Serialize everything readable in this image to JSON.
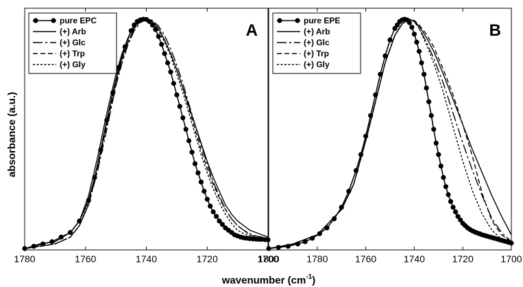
{
  "figure": {
    "ylabel": "absorbance (a.u.)",
    "xlabel_main": "wavenumber (cm",
    "xlabel_sup": "-1",
    "xlabel_close": ")"
  },
  "chart_data": [
    {
      "type": "line",
      "panel_label": "A",
      "x_axis": {
        "min": 1780,
        "max": 1700,
        "reversed": true,
        "ticks": [
          1780,
          1760,
          1740,
          1720,
          1700
        ]
      },
      "y_axis": {
        "min": 0,
        "max": 1,
        "ticks": []
      },
      "grid": false,
      "legend_position": "top-left",
      "series": [
        {
          "name": "pure EPC",
          "style": "solid-marker",
          "x": [
            1780,
            1777,
            1774,
            1771,
            1768,
            1765,
            1762,
            1759,
            1757,
            1755,
            1753,
            1751,
            1749,
            1747,
            1745,
            1744,
            1743,
            1742,
            1741,
            1740,
            1739,
            1738,
            1737,
            1736,
            1735,
            1734,
            1733,
            1732,
            1731,
            1730,
            1729,
            1728,
            1727,
            1726,
            1725,
            1724,
            1723,
            1722,
            1721,
            1720,
            1719,
            1718,
            1717,
            1716,
            1715,
            1714,
            1713,
            1712,
            1711,
            1710,
            1709,
            1708,
            1707,
            1706,
            1705,
            1704,
            1703,
            1702,
            1701,
            1700
          ],
          "y": [
            0.0,
            0.01,
            0.02,
            0.03,
            0.05,
            0.07,
            0.12,
            0.21,
            0.31,
            0.43,
            0.56,
            0.68,
            0.79,
            0.88,
            0.95,
            0.975,
            0.99,
            0.997,
            1.0,
            0.999,
            0.99,
            0.975,
            0.955,
            0.925,
            0.89,
            0.85,
            0.81,
            0.77,
            0.72,
            0.67,
            0.62,
            0.57,
            0.52,
            0.47,
            0.42,
            0.37,
            0.33,
            0.29,
            0.25,
            0.215,
            0.185,
            0.16,
            0.14,
            0.12,
            0.105,
            0.09,
            0.08,
            0.07,
            0.06,
            0.055,
            0.05,
            0.047,
            0.045,
            0.043,
            0.042,
            0.041,
            0.04,
            0.04,
            0.039,
            0.038
          ]
        },
        {
          "name": "(+) Arb",
          "style": "solid",
          "x": [
            1780,
            1775,
            1770,
            1765,
            1762,
            1759,
            1756,
            1753,
            1750,
            1748,
            1746,
            1744,
            1742,
            1740,
            1738,
            1736,
            1734,
            1732,
            1730,
            1728,
            1726,
            1724,
            1722,
            1720,
            1718,
            1716,
            1714,
            1712,
            1710,
            1708,
            1706,
            1704,
            1702,
            1700
          ],
          "y": [
            0.0,
            0.02,
            0.03,
            0.07,
            0.12,
            0.23,
            0.4,
            0.59,
            0.76,
            0.85,
            0.92,
            0.97,
            0.995,
            1.0,
            0.99,
            0.96,
            0.91,
            0.85,
            0.78,
            0.7,
            0.62,
            0.54,
            0.46,
            0.38,
            0.31,
            0.25,
            0.19,
            0.15,
            0.12,
            0.1,
            0.08,
            0.07,
            0.06,
            0.05
          ]
        },
        {
          "name": "(+) Glc",
          "style": "longdash",
          "x": [
            1780,
            1775,
            1770,
            1765,
            1762,
            1759,
            1756,
            1753,
            1750,
            1748,
            1746,
            1744,
            1742,
            1740,
            1738,
            1736,
            1734,
            1732,
            1730,
            1728,
            1726,
            1724,
            1722,
            1720,
            1718,
            1716,
            1714,
            1712,
            1710,
            1708,
            1706,
            1704,
            1702,
            1700
          ],
          "y": [
            0.0,
            0.01,
            0.02,
            0.05,
            0.1,
            0.19,
            0.34,
            0.52,
            0.71,
            0.81,
            0.89,
            0.95,
            0.985,
            1.0,
            0.995,
            0.97,
            0.93,
            0.87,
            0.8,
            0.72,
            0.63,
            0.54,
            0.45,
            0.37,
            0.29,
            0.23,
            0.17,
            0.13,
            0.1,
            0.08,
            0.065,
            0.055,
            0.05,
            0.045
          ]
        },
        {
          "name": "(+) Trp",
          "style": "dash",
          "x": [
            1780,
            1775,
            1770,
            1765,
            1762,
            1759,
            1756,
            1753,
            1750,
            1748,
            1746,
            1744,
            1742,
            1740,
            1738,
            1736,
            1734,
            1732,
            1730,
            1728,
            1726,
            1724,
            1722,
            1720,
            1718,
            1716,
            1714,
            1712,
            1710,
            1708,
            1706,
            1704,
            1702,
            1700
          ],
          "y": [
            0.0,
            0.01,
            0.02,
            0.05,
            0.1,
            0.19,
            0.35,
            0.54,
            0.72,
            0.82,
            0.9,
            0.96,
            0.99,
            1.0,
            0.99,
            0.96,
            0.91,
            0.85,
            0.78,
            0.7,
            0.61,
            0.52,
            0.43,
            0.35,
            0.28,
            0.22,
            0.17,
            0.13,
            0.1,
            0.08,
            0.06,
            0.05,
            0.045,
            0.04
          ]
        },
        {
          "name": "(+) Gly",
          "style": "dot",
          "x": [
            1780,
            1775,
            1770,
            1765,
            1762,
            1759,
            1756,
            1753,
            1750,
            1748,
            1746,
            1744,
            1742,
            1740,
            1738,
            1736,
            1734,
            1732,
            1730,
            1728,
            1726,
            1724,
            1722,
            1720,
            1718,
            1716,
            1714,
            1712,
            1710,
            1708,
            1706,
            1704,
            1702,
            1700
          ],
          "y": [
            0.0,
            0.01,
            0.02,
            0.05,
            0.1,
            0.2,
            0.36,
            0.55,
            0.73,
            0.83,
            0.9,
            0.96,
            0.99,
            1.0,
            0.985,
            0.95,
            0.9,
            0.84,
            0.76,
            0.68,
            0.59,
            0.5,
            0.41,
            0.33,
            0.26,
            0.2,
            0.15,
            0.11,
            0.08,
            0.065,
            0.055,
            0.045,
            0.04,
            0.035
          ]
        }
      ]
    },
    {
      "type": "line",
      "panel_label": "B",
      "x_axis": {
        "min": 1800,
        "max": 1700,
        "reversed": true,
        "ticks": [
          1800,
          1780,
          1760,
          1740,
          1720,
          1700
        ]
      },
      "y_axis": {
        "min": 0,
        "max": 1,
        "ticks": []
      },
      "grid": false,
      "legend_position": "top-left",
      "series": [
        {
          "name": "pure EPE",
          "style": "solid-marker",
          "x": [
            1800,
            1796,
            1792,
            1788,
            1785,
            1782,
            1779,
            1776,
            1773,
            1770,
            1767,
            1764,
            1762,
            1760,
            1758,
            1756,
            1754,
            1752,
            1750,
            1748,
            1747,
            1746,
            1745,
            1744,
            1743,
            1742,
            1741,
            1740,
            1739,
            1738,
            1737,
            1736,
            1735,
            1734,
            1733,
            1732,
            1731,
            1730,
            1729,
            1728,
            1727,
            1726,
            1725,
            1724,
            1723,
            1722,
            1721,
            1720,
            1719,
            1718,
            1717,
            1716,
            1715,
            1714,
            1713,
            1712,
            1711,
            1710,
            1709,
            1708,
            1707,
            1706,
            1705,
            1704,
            1703,
            1702,
            1701,
            1700
          ],
          "y": [
            0.0,
            0.005,
            0.01,
            0.02,
            0.03,
            0.045,
            0.065,
            0.09,
            0.13,
            0.18,
            0.25,
            0.34,
            0.41,
            0.49,
            0.58,
            0.67,
            0.76,
            0.84,
            0.91,
            0.96,
            0.975,
            0.99,
            0.997,
            1.0,
            0.997,
            0.985,
            0.965,
            0.935,
            0.9,
            0.86,
            0.81,
            0.76,
            0.7,
            0.64,
            0.58,
            0.52,
            0.46,
            0.41,
            0.36,
            0.31,
            0.27,
            0.235,
            0.205,
            0.18,
            0.16,
            0.14,
            0.125,
            0.11,
            0.1,
            0.09,
            0.083,
            0.077,
            0.072,
            0.068,
            0.064,
            0.06,
            0.057,
            0.054,
            0.051,
            0.048,
            0.045,
            0.042,
            0.039,
            0.036,
            0.033,
            0.03,
            0.027,
            0.024
          ]
        },
        {
          "name": "(+) Arb",
          "style": "solid",
          "x": [
            1800,
            1790,
            1780,
            1770,
            1765,
            1760,
            1756,
            1752,
            1748,
            1745,
            1742,
            1740,
            1738,
            1735,
            1732,
            1728,
            1724,
            1720,
            1716,
            1712,
            1708,
            1704,
            1700
          ],
          "y": [
            0.0,
            0.02,
            0.06,
            0.17,
            0.28,
            0.47,
            0.64,
            0.81,
            0.93,
            0.98,
            1.0,
            0.99,
            0.97,
            0.92,
            0.86,
            0.76,
            0.65,
            0.54,
            0.43,
            0.33,
            0.23,
            0.14,
            0.06
          ]
        },
        {
          "name": "(+) Glc",
          "style": "longdash",
          "x": [
            1800,
            1790,
            1780,
            1770,
            1765,
            1760,
            1756,
            1752,
            1748,
            1745,
            1742,
            1740,
            1738,
            1735,
            1732,
            1728,
            1724,
            1720,
            1716,
            1712,
            1708,
            1704,
            1700
          ],
          "y": [
            0.0,
            0.02,
            0.06,
            0.17,
            0.28,
            0.47,
            0.64,
            0.81,
            0.93,
            0.98,
            1.0,
            0.99,
            0.96,
            0.9,
            0.83,
            0.72,
            0.59,
            0.46,
            0.34,
            0.23,
            0.13,
            0.07,
            0.03
          ]
        },
        {
          "name": "(+) Trp",
          "style": "dash",
          "x": [
            1800,
            1790,
            1780,
            1770,
            1765,
            1760,
            1756,
            1752,
            1748,
            1745,
            1742,
            1740,
            1738,
            1735,
            1732,
            1728,
            1724,
            1720,
            1716,
            1712,
            1708,
            1704,
            1700
          ],
          "y": [
            0.0,
            0.02,
            0.06,
            0.17,
            0.28,
            0.47,
            0.64,
            0.81,
            0.93,
            0.98,
            1.0,
            0.995,
            0.975,
            0.935,
            0.88,
            0.78,
            0.67,
            0.54,
            0.4,
            0.24,
            0.12,
            0.06,
            0.03
          ]
        },
        {
          "name": "(+) Gly",
          "style": "dot",
          "x": [
            1800,
            1790,
            1780,
            1770,
            1765,
            1760,
            1756,
            1752,
            1748,
            1745,
            1742,
            1740,
            1738,
            1735,
            1732,
            1728,
            1724,
            1720,
            1716,
            1712,
            1708,
            1704,
            1700
          ],
          "y": [
            0.0,
            0.02,
            0.06,
            0.17,
            0.28,
            0.47,
            0.64,
            0.81,
            0.93,
            0.98,
            1.0,
            0.99,
            0.96,
            0.89,
            0.81,
            0.68,
            0.53,
            0.38,
            0.25,
            0.15,
            0.08,
            0.04,
            0.02
          ]
        }
      ]
    }
  ]
}
